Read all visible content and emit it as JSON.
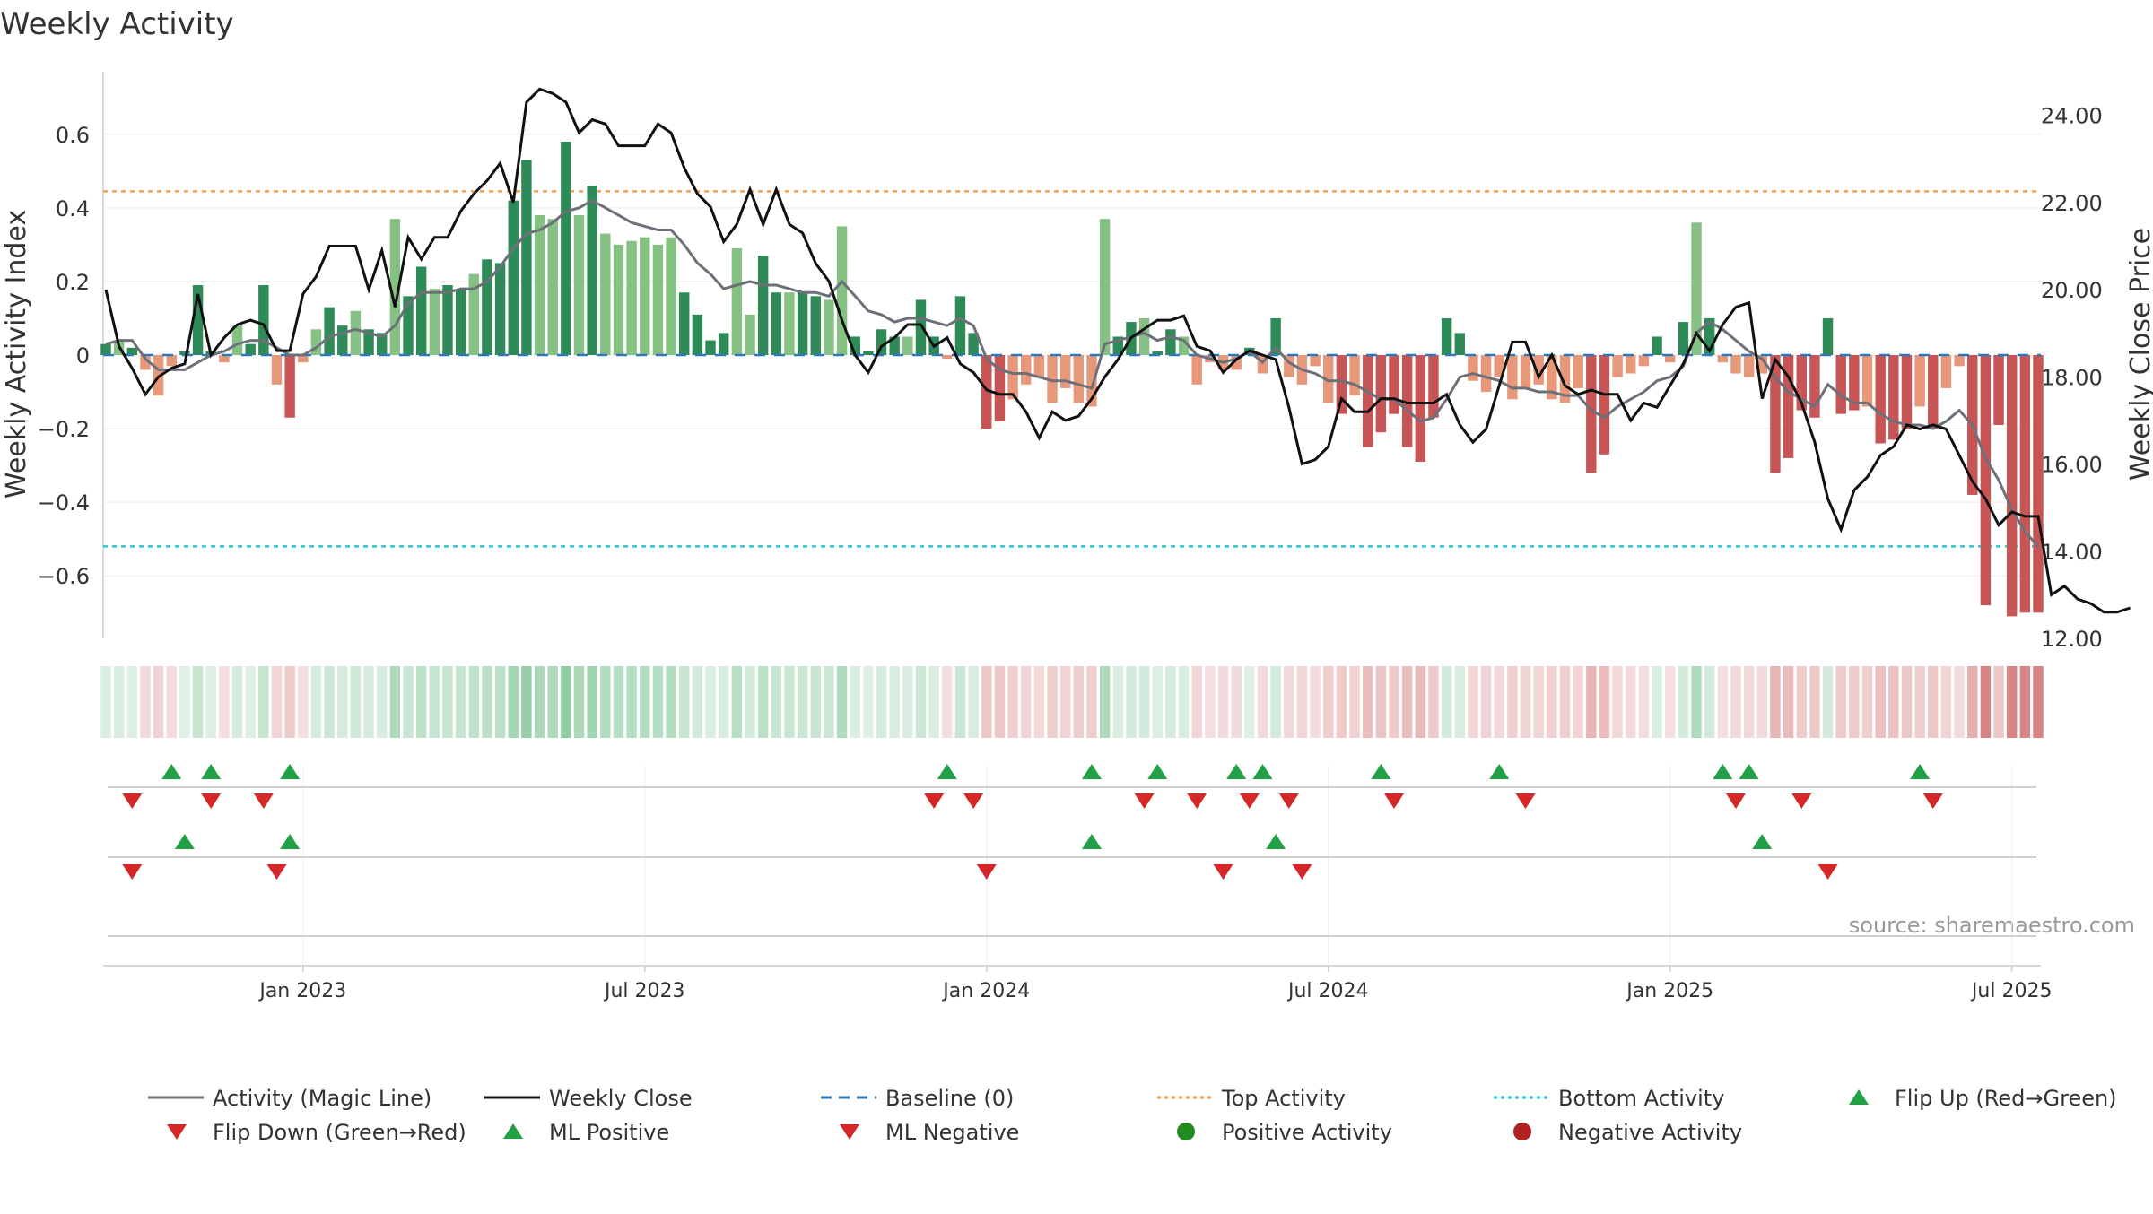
{
  "chart_data": {
    "type": "bar",
    "title": "Weekly Activity",
    "ylabel": "Weekly Activity Index",
    "y2label": "Weekly Close Price",
    "source": "source: sharemaestro.com",
    "ylim": [
      -0.77,
      0.77
    ],
    "y2lim": [
      12.0,
      25.0
    ],
    "yticks": [
      {
        "v": 0.6,
        "label": "0.6"
      },
      {
        "v": 0.4,
        "label": "0.4"
      },
      {
        "v": 0.2,
        "label": "0.2"
      },
      {
        "v": 0,
        "label": "0"
      },
      {
        "v": -0.2,
        "label": "−0.2"
      },
      {
        "v": -0.4,
        "label": "−0.4"
      },
      {
        "v": -0.6,
        "label": "−0.6"
      }
    ],
    "y2ticks": [
      {
        "v": 24,
        "label": "24.00"
      },
      {
        "v": 22,
        "label": "22.00"
      },
      {
        "v": 20,
        "label": "20.00"
      },
      {
        "v": 18,
        "label": "18.00"
      },
      {
        "v": 16,
        "label": "16.00"
      },
      {
        "v": 14,
        "label": "14.00"
      },
      {
        "v": 12,
        "label": "12.00"
      }
    ],
    "xticks": [
      {
        "week": 15,
        "label": "Jan 2023"
      },
      {
        "week": 41,
        "label": "Jul 2023"
      },
      {
        "week": 67,
        "label": "Jan 2024"
      },
      {
        "week": 93,
        "label": "Jul 2024"
      },
      {
        "week": 119,
        "label": "Jan 2025"
      },
      {
        "week": 145,
        "label": "Jul 2025"
      }
    ],
    "top_activity": 0.445,
    "bottom_activity": -0.52,
    "baseline": 0,
    "activity": [
      0.03,
      0.04,
      0.02,
      -0.04,
      -0.11,
      -0.03,
      0.01,
      0.19,
      0.01,
      -0.02,
      0.08,
      0.03,
      0.19,
      -0.08,
      -0.17,
      -0.02,
      0.07,
      0.13,
      0.08,
      0.12,
      0.07,
      0.06,
      0.37,
      0.16,
      0.24,
      0.18,
      0.19,
      0.18,
      0.22,
      0.26,
      0.25,
      0.42,
      0.53,
      0.38,
      0.37,
      0.58,
      0.38,
      0.46,
      0.33,
      0.3,
      0.31,
      0.32,
      0.3,
      0.32,
      0.17,
      0.11,
      0.04,
      0.06,
      0.29,
      0.11,
      0.27,
      0.17,
      0.17,
      0.17,
      0.16,
      0.15,
      0.35,
      0.05,
      0.01,
      0.07,
      0.05,
      0.05,
      0.15,
      0.05,
      -0.01,
      0.16,
      0.06,
      -0.2,
      -0.18,
      -0.12,
      -0.08,
      -0.06,
      -0.13,
      -0.09,
      -0.13,
      -0.14,
      0.37,
      0.05,
      0.09,
      0.1,
      0.01,
      0.07,
      0.05,
      -0.08,
      -0.02,
      -0.04,
      -0.04,
      0.02,
      -0.05,
      0.1,
      -0.06,
      -0.08,
      -0.03,
      -0.13,
      -0.16,
      -0.11,
      -0.25,
      -0.21,
      -0.16,
      -0.25,
      -0.29,
      -0.17,
      0.1,
      0.06,
      -0.07,
      -0.1,
      -0.06,
      -0.12,
      -0.09,
      -0.08,
      -0.12,
      -0.13,
      -0.09,
      -0.32,
      -0.27,
      -0.06,
      -0.05,
      -0.03,
      0.05,
      -0.02,
      0.09,
      0.36,
      0.1,
      -0.02,
      -0.05,
      -0.06,
      -0.05,
      -0.32,
      -0.28,
      -0.15,
      -0.17,
      0.1,
      -0.16,
      -0.15,
      -0.14,
      -0.24,
      -0.23,
      -0.2,
      -0.14,
      -0.2,
      -0.09,
      -0.03,
      -0.38,
      -0.68,
      -0.19,
      -0.71,
      -0.7,
      -0.7
    ],
    "magic_line": [
      0.03,
      0.04,
      0.04,
      -0.01,
      -0.04,
      -0.04,
      -0.04,
      -0.02,
      0.0,
      0.01,
      0.03,
      0.04,
      0.04,
      0.02,
      0.0,
      0.0,
      0.02,
      0.05,
      0.06,
      0.07,
      0.06,
      0.05,
      0.08,
      0.14,
      0.17,
      0.17,
      0.17,
      0.18,
      0.18,
      0.2,
      0.24,
      0.29,
      0.33,
      0.34,
      0.36,
      0.39,
      0.4,
      0.42,
      0.4,
      0.38,
      0.36,
      0.35,
      0.34,
      0.34,
      0.3,
      0.25,
      0.22,
      0.18,
      0.19,
      0.2,
      0.19,
      0.19,
      0.18,
      0.17,
      0.17,
      0.16,
      0.2,
      0.16,
      0.12,
      0.11,
      0.09,
      0.1,
      0.1,
      0.09,
      0.08,
      0.1,
      0.08,
      -0.01,
      -0.04,
      -0.05,
      -0.05,
      -0.06,
      -0.07,
      -0.07,
      -0.08,
      -0.09,
      0.03,
      0.04,
      0.05,
      0.06,
      0.04,
      0.05,
      0.04,
      0.0,
      -0.01,
      -0.02,
      -0.01,
      0.01,
      -0.02,
      0.02,
      -0.02,
      -0.04,
      -0.05,
      -0.07,
      -0.07,
      -0.08,
      -0.1,
      -0.12,
      -0.12,
      -0.15,
      -0.18,
      -0.17,
      -0.12,
      -0.06,
      -0.05,
      -0.06,
      -0.07,
      -0.09,
      -0.09,
      -0.1,
      -0.1,
      -0.11,
      -0.11,
      -0.15,
      -0.17,
      -0.14,
      -0.12,
      -0.1,
      -0.07,
      -0.06,
      -0.03,
      0.06,
      0.09,
      0.07,
      0.04,
      0.01,
      -0.01,
      -0.06,
      -0.1,
      -0.12,
      -0.14,
      -0.08,
      -0.11,
      -0.13,
      -0.13,
      -0.16,
      -0.18,
      -0.19,
      -0.19,
      -0.2,
      -0.18,
      -0.15,
      -0.19,
      -0.28,
      -0.34,
      -0.42,
      -0.48,
      -0.52
    ],
    "weekly_close": [
      20.0,
      18.7,
      18.2,
      17.6,
      18.0,
      18.2,
      18.3,
      19.9,
      18.5,
      18.9,
      19.2,
      19.3,
      19.2,
      18.6,
      18.6,
      19.9,
      20.3,
      21.0,
      21.0,
      21.0,
      20.0,
      20.9,
      19.6,
      21.2,
      20.7,
      21.2,
      21.2,
      21.8,
      22.2,
      22.5,
      22.9,
      22.0,
      24.3,
      24.6,
      24.5,
      24.3,
      23.6,
      23.9,
      23.8,
      23.3,
      23.3,
      23.3,
      23.8,
      23.6,
      22.8,
      22.2,
      21.9,
      21.1,
      21.5,
      22.3,
      21.5,
      22.3,
      21.5,
      21.3,
      20.6,
      20.2,
      19.3,
      18.5,
      18.1,
      18.7,
      18.9,
      19.2,
      19.2,
      18.7,
      18.9,
      18.3,
      18.1,
      17.7,
      17.6,
      17.6,
      17.2,
      16.6,
      17.2,
      17.0,
      17.1,
      17.5,
      18.0,
      18.4,
      18.9,
      19.1,
      19.3,
      19.3,
      19.4,
      18.7,
      18.6,
      18.1,
      18.4,
      18.6,
      18.5,
      18.4,
      17.3,
      16.0,
      16.1,
      16.4,
      17.5,
      17.2,
      17.2,
      17.5,
      17.5,
      17.4,
      17.4,
      17.4,
      17.6,
      16.9,
      16.5,
      16.8,
      17.8,
      18.8,
      18.8,
      18.0,
      18.5,
      17.8,
      17.6,
      17.7,
      17.6,
      17.6,
      17.0,
      17.4,
      17.3,
      17.8,
      18.3,
      19.0,
      18.6,
      19.2,
      19.6,
      19.7,
      17.5,
      18.4,
      18.0,
      17.4,
      16.5,
      15.2,
      14.5,
      15.4,
      15.7,
      16.2,
      16.4,
      16.9,
      16.8,
      16.9,
      16.8,
      16.2,
      15.6,
      15.2,
      14.6,
      14.9,
      14.8,
      14.8,
      13.0,
      13.2,
      12.9,
      12.8,
      12.6,
      12.6,
      12.7
    ],
    "flip_up": [
      5,
      8,
      14,
      64,
      75,
      80,
      86,
      88,
      97,
      106,
      123,
      125,
      138
    ],
    "flip_down": [
      2,
      8,
      12,
      63,
      66,
      79,
      83,
      87,
      90,
      98,
      108,
      124,
      129,
      139
    ],
    "ml_positive": [
      6,
      14,
      75,
      89,
      126
    ],
    "ml_negative": [
      2,
      13,
      67,
      85,
      91,
      131
    ],
    "legend": [
      "Activity (Magic Line)",
      "Weekly Close",
      "Baseline (0)",
      "Top Activity",
      "Bottom Activity",
      "Flip Up (Red→Green)",
      "Flip Down (Green→Red)",
      "ML Positive",
      "ML Negative",
      "Positive Activity",
      "Negative Activity"
    ]
  },
  "colors": {
    "pos_strong": "#2e8b57",
    "pos_light": "#86c184",
    "neg_strong": "#c85555",
    "neg_light": "#e8987a",
    "magic_line": "#6e7079",
    "close": "#111111",
    "baseline": "#2e78b8",
    "top": "#f0a050",
    "bottom": "#26c6d0",
    "flip_up": "#22a045",
    "flip_down": "#d62728",
    "pos_dot": "#228b22",
    "neg_dot": "#b22222"
  }
}
